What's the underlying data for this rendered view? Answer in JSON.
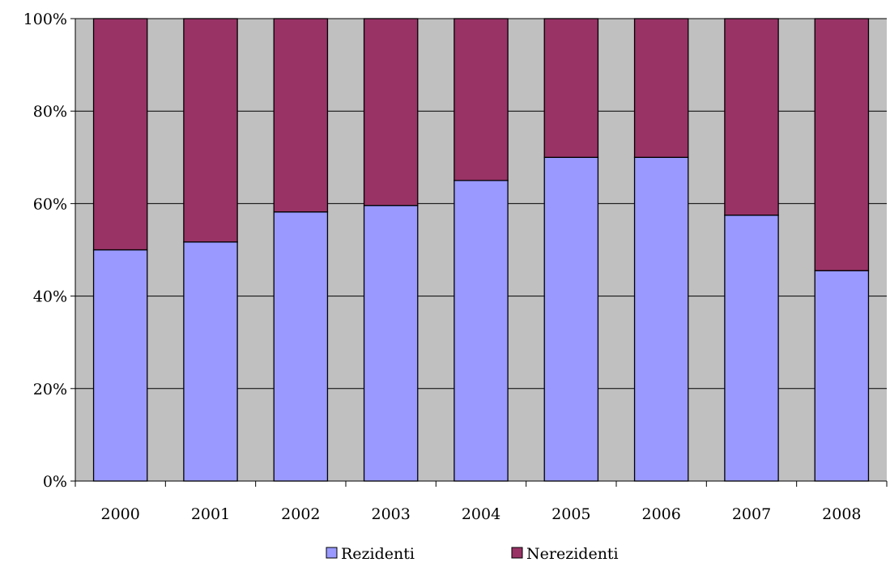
{
  "chart_data": {
    "type": "bar",
    "stacked": "percent",
    "categories": [
      "2000",
      "2001",
      "2002",
      "2003",
      "2004",
      "2005",
      "2006",
      "2007",
      "2008"
    ],
    "series": [
      {
        "name": "Rezidenti",
        "values": [
          50,
          51.7,
          58.2,
          59.6,
          65,
          70,
          70,
          57.5,
          45.5
        ],
        "color": "#9999ff"
      },
      {
        "name": "Nerezidenti",
        "values": [
          50,
          48.3,
          41.8,
          40.4,
          35,
          30,
          30,
          42.5,
          54.5
        ],
        "color": "#993366"
      }
    ],
    "y_ticks": [
      "0%",
      "20%",
      "40%",
      "60%",
      "80%",
      "100%"
    ],
    "ylim": [
      0,
      100
    ],
    "grid": true,
    "plot_background": "#c0c0c0",
    "legend_position": "bottom"
  }
}
